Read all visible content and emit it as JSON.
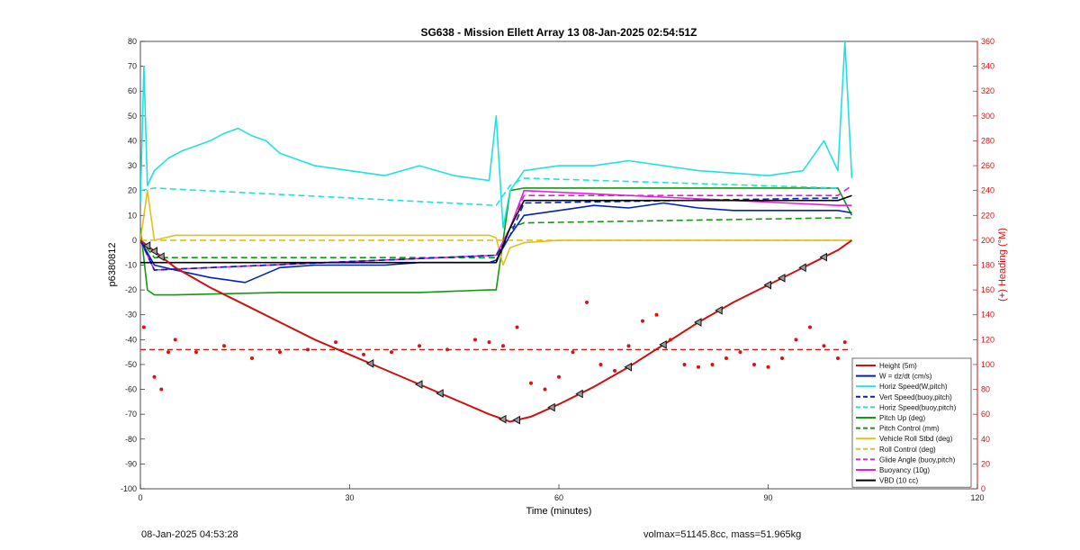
{
  "chart_data": {
    "type": "line",
    "title": "SG638 - Mission Ellett Array 13 08-Jan-2025 02:54:51Z",
    "xlabel": "Time (minutes)",
    "ylabel": "p6380812",
    "y2label": "(+) Heading (°M)",
    "xlim": [
      0,
      120
    ],
    "ylim": [
      -100,
      80
    ],
    "y2lim": [
      0,
      360
    ],
    "xticks": [
      "0",
      "30",
      "60",
      "90",
      "120"
    ],
    "yticks": [
      "80",
      "70",
      "60",
      "50",
      "40",
      "30",
      "20",
      "10",
      "0",
      "-10",
      "-20",
      "-30",
      "-40",
      "-50",
      "-60",
      "-70",
      "-80",
      "-90",
      "-100"
    ],
    "y2ticks": [
      "360",
      "340",
      "320",
      "300",
      "280",
      "260",
      "240",
      "220",
      "200",
      "180",
      "160",
      "140",
      "120",
      "100",
      "80",
      "60",
      "40",
      "20",
      "0"
    ],
    "legend_position": "bottom-right",
    "series": [
      {
        "name": "Height (5m)",
        "color": "#cc1111",
        "style": "solid",
        "x": [
          0,
          5,
          10,
          15,
          20,
          25,
          30,
          35,
          40,
          45,
          50,
          53,
          56,
          60,
          65,
          70,
          75,
          80,
          85,
          90,
          95,
          100,
          102
        ],
        "y": [
          0,
          -11,
          -19,
          -26,
          -33,
          -40,
          -46,
          -52,
          -58,
          -64,
          -70,
          -73,
          -71,
          -66,
          -59,
          -51,
          -42,
          -33,
          -25,
          -18,
          -11,
          -4,
          0
        ]
      },
      {
        "name": "W = dz/dt (cm/s)",
        "color": "#0022bb",
        "style": "solid",
        "x": [
          0,
          2,
          5,
          10,
          15,
          20,
          25,
          30,
          35,
          40,
          45,
          50,
          51,
          53,
          55,
          60,
          65,
          70,
          75,
          80,
          85,
          90,
          95,
          100,
          102
        ],
        "y": [
          0,
          -10,
          -12,
          -15,
          -17,
          -11,
          -10,
          -10,
          -10,
          -9,
          -9,
          -9,
          -8,
          2,
          10,
          12,
          14,
          13,
          15,
          13,
          12,
          12,
          12,
          12,
          11
        ]
      },
      {
        "name": "Horiz Speed(W,pitch)",
        "color": "#22e0e0",
        "style": "solid",
        "x": [
          0,
          0.5,
          1,
          2,
          4,
          6,
          8,
          10,
          12,
          14,
          16,
          18,
          20,
          25,
          30,
          35,
          40,
          45,
          50,
          51,
          52,
          53,
          55,
          60,
          65,
          70,
          75,
          80,
          85,
          90,
          95,
          98,
          100,
          101,
          102
        ],
        "y": [
          15,
          70,
          22,
          28,
          33,
          36,
          38,
          40,
          43,
          45,
          42,
          40,
          35,
          30,
          28,
          26,
          30,
          26,
          24,
          50,
          5,
          20,
          28,
          30,
          30,
          32,
          30,
          28,
          27,
          26,
          28,
          40,
          28,
          80,
          25
        ]
      },
      {
        "name": "Vert Speed(buoy,pitch)",
        "color": "#0022bb",
        "style": "dashed",
        "x": [
          0,
          2,
          51,
          53,
          55,
          100
        ],
        "y": [
          0,
          -12,
          -6,
          2,
          15,
          17
        ]
      },
      {
        "name": "Horiz Speed(buoy,pitch)",
        "color": "#22e0e0",
        "style": "dashed",
        "x": [
          0,
          2,
          51,
          53,
          55,
          100
        ],
        "y": [
          20,
          21,
          14,
          22,
          25,
          21
        ]
      },
      {
        "name": "Pitch Up (deg)",
        "color": "#119911",
        "style": "solid",
        "x": [
          0,
          1,
          2,
          5,
          20,
          40,
          50,
          51,
          53,
          55,
          60,
          80,
          100,
          102
        ],
        "y": [
          5,
          -20,
          -22,
          -22,
          -21,
          -21,
          -20,
          -20,
          20,
          21,
          21,
          21,
          21,
          10
        ]
      },
      {
        "name": "Pitch Control (mm)",
        "color": "#119911",
        "style": "dashed",
        "x": [
          0,
          2,
          51,
          53,
          55,
          100,
          102
        ],
        "y": [
          0,
          -7,
          -7,
          5,
          7,
          9,
          9
        ]
      },
      {
        "name": "Vehicle Roll Stbd (deg)",
        "color": "#e0c020",
        "style": "solid",
        "x": [
          0,
          1,
          2,
          5,
          10,
          20,
          30,
          35,
          40,
          45,
          50,
          51,
          52,
          53,
          55,
          60,
          70,
          80,
          90,
          100,
          102
        ],
        "y": [
          0,
          20,
          0,
          2,
          2,
          2,
          2,
          2,
          2,
          2,
          2,
          1,
          -10,
          -3,
          -1,
          0,
          0,
          0,
          0,
          0,
          0
        ]
      },
      {
        "name": "Roll Control (deg)",
        "color": "#e0c020",
        "style": "dashed",
        "x": [
          0,
          2,
          51,
          53,
          55,
          100
        ],
        "y": [
          0,
          0,
          0,
          0,
          0,
          0
        ]
      },
      {
        "name": "Glide Angle (buoy,pitch)",
        "color": "#dd22dd",
        "style": "dashed",
        "x": [
          0,
          2,
          51,
          53,
          55,
          100,
          102
        ],
        "y": [
          0,
          -12,
          -6,
          5,
          18,
          18,
          22
        ]
      },
      {
        "name": "Buoyancy (10g)",
        "color": "#dd22dd",
        "style": "solid",
        "x": [
          0,
          2,
          51,
          53,
          55,
          100,
          102
        ],
        "y": [
          0,
          -12,
          -6,
          5,
          20,
          14,
          14
        ]
      },
      {
        "name": "VBD (10 cc)",
        "color": "#000000",
        "style": "solid",
        "x": [
          0,
          2,
          51,
          53,
          55,
          100,
          102
        ],
        "y": [
          -9,
          -9,
          -9,
          5,
          16,
          16,
          18
        ]
      }
    ],
    "heading_target_deg": 112,
    "heading_points": {
      "x": [
        0.5,
        2,
        3,
        4,
        5,
        8,
        12,
        16,
        20,
        24,
        28,
        32,
        36,
        40,
        44,
        48,
        50,
        52,
        54,
        56,
        58,
        60,
        62,
        64,
        66,
        68,
        70,
        72,
        74,
        76,
        78,
        80,
        82,
        84,
        86,
        88,
        90,
        92,
        94,
        96,
        98,
        100,
        101
      ],
      "y_heading": [
        130,
        90,
        80,
        110,
        120,
        110,
        115,
        105,
        110,
        112,
        118,
        108,
        110,
        115,
        112,
        120,
        118,
        115,
        130,
        85,
        80,
        90,
        110,
        150,
        100,
        95,
        115,
        135,
        140,
        120,
        100,
        98,
        100,
        105,
        110,
        100,
        98,
        105,
        120,
        130,
        115,
        105,
        118
      ]
    },
    "yo_markers_x": [
      1,
      2,
      3,
      33,
      40,
      43,
      52,
      54,
      59,
      63,
      70,
      75,
      80,
      83,
      90,
      92,
      95,
      98
    ]
  },
  "footer": {
    "timestamp": "08-Jan-2025 04:53:28",
    "volmax": "volmax=51145.8cc, mass=51.965kg"
  }
}
